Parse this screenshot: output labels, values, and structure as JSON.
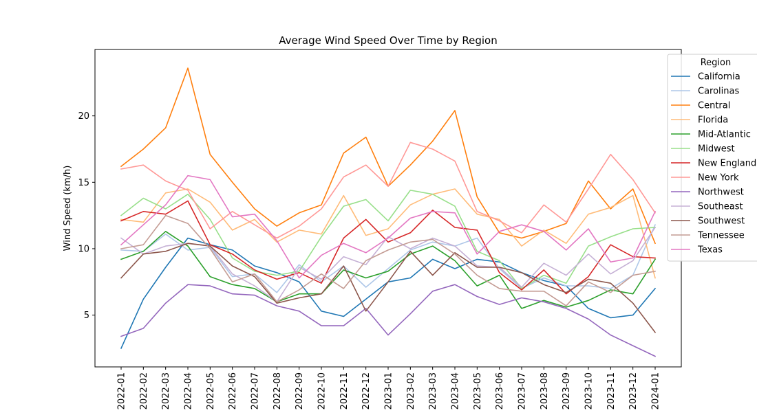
{
  "chart_data": {
    "type": "line",
    "title": "Average Wind Speed Over Time by Region",
    "xlabel": "",
    "ylabel": "Wind Speed (km/h)",
    "ylim": [
      1.1,
      25.0
    ],
    "yticks": [
      5,
      10,
      15,
      20
    ],
    "grid": false,
    "legend": {
      "title": "Region",
      "placement": "right"
    },
    "categories": [
      "2022-01",
      "2022-02",
      "2022-03",
      "2022-04",
      "2022-05",
      "2022-06",
      "2022-07",
      "2022-08",
      "2022-09",
      "2022-10",
      "2022-11",
      "2022-12",
      "2023-01",
      "2023-02",
      "2023-03",
      "2023-04",
      "2023-05",
      "2023-06",
      "2023-07",
      "2023-08",
      "2023-09",
      "2023-10",
      "2023-11",
      "2023-12",
      "2024-01"
    ],
    "series": [
      {
        "name": "California",
        "color": "#1f77b4",
        "values": [
          2.5,
          6.2,
          8.6,
          10.8,
          10.3,
          9.9,
          8.7,
          8.2,
          7.5,
          5.3,
          4.9,
          6.2,
          7.5,
          7.8,
          9.2,
          8.5,
          9.2,
          9.0,
          8.2,
          7.6,
          7.2,
          5.5,
          4.8,
          5.0,
          7.0
        ]
      },
      {
        "name": "Carolinas",
        "color": "#aec7e8",
        "values": [
          9.9,
          9.8,
          11.1,
          9.9,
          10.1,
          7.9,
          8.1,
          6.7,
          8.8,
          7.5,
          8.7,
          7.1,
          8.5,
          9.9,
          10.5,
          10.2,
          10.8,
          8.5,
          7.0,
          7.8,
          7.2,
          7.2,
          7.0,
          8.0,
          11.8
        ]
      },
      {
        "name": "Central",
        "color": "#ff7f0e",
        "values": [
          16.2,
          17.5,
          19.1,
          23.6,
          17.1,
          15.0,
          13.0,
          11.7,
          12.7,
          13.3,
          17.2,
          18.4,
          14.7,
          16.3,
          18.1,
          20.4,
          13.9,
          11.2,
          10.8,
          11.3,
          11.9,
          15.1,
          13.0,
          14.5,
          10.4
        ]
      },
      {
        "name": "Florida",
        "color": "#ffbb78",
        "values": [
          12.2,
          12.0,
          14.2,
          14.5,
          13.5,
          11.4,
          12.2,
          10.5,
          11.4,
          11.1,
          14.0,
          11.0,
          11.5,
          13.3,
          14.1,
          14.5,
          12.6,
          12.2,
          10.2,
          11.4,
          10.4,
          12.6,
          13.1,
          14.0,
          7.8
        ]
      },
      {
        "name": "Mid-Atlantic",
        "color": "#2ca02c",
        "values": [
          9.2,
          9.8,
          11.3,
          10.2,
          7.9,
          7.3,
          7.0,
          6.0,
          6.6,
          6.6,
          8.4,
          7.8,
          8.3,
          9.6,
          10.2,
          9.1,
          7.2,
          8.0,
          5.5,
          6.1,
          5.6,
          6.1,
          6.9,
          6.6,
          9.2
        ]
      },
      {
        "name": "Midwest",
        "color": "#98df8a",
        "values": [
          12.5,
          13.8,
          13.0,
          14.1,
          12.2,
          9.3,
          8.3,
          8.0,
          8.3,
          10.9,
          13.2,
          13.7,
          12.1,
          14.4,
          14.1,
          13.2,
          9.8,
          9.1,
          7.0,
          8.0,
          7.4,
          10.2,
          10.9,
          11.5,
          11.6
        ]
      },
      {
        "name": "New England",
        "color": "#d62728",
        "values": [
          12.1,
          12.8,
          12.6,
          13.6,
          10.3,
          9.6,
          8.4,
          7.7,
          8.2,
          7.4,
          10.8,
          12.2,
          10.5,
          11.2,
          12.9,
          11.6,
          11.4,
          8.2,
          6.9,
          8.4,
          6.6,
          7.9,
          10.3,
          9.4,
          9.3
        ]
      },
      {
        "name": "New York",
        "color": "#ff9896",
        "values": [
          16.0,
          16.3,
          15.1,
          14.4,
          11.5,
          12.8,
          11.8,
          10.8,
          11.7,
          13.0,
          15.4,
          16.3,
          14.7,
          18.0,
          17.5,
          16.6,
          12.8,
          12.1,
          11.2,
          13.3,
          12.0,
          14.5,
          17.1,
          15.2,
          12.7
        ]
      },
      {
        "name": "Northwest",
        "color": "#9467bd",
        "values": [
          3.4,
          4.0,
          5.9,
          7.3,
          7.2,
          6.6,
          6.5,
          5.7,
          5.3,
          4.2,
          4.2,
          5.5,
          3.5,
          5.1,
          6.8,
          7.3,
          6.4,
          5.8,
          6.3,
          6.0,
          5.5,
          4.7,
          3.5,
          2.7,
          1.9
        ]
      },
      {
        "name": "Southeast",
        "color": "#c5b0d5",
        "values": [
          10.8,
          9.6,
          10.2,
          10.4,
          10.2,
          8.1,
          7.2,
          6.0,
          8.6,
          7.7,
          9.4,
          8.8,
          10.9,
          10.0,
          10.8,
          10.2,
          8.7,
          8.6,
          7.1,
          8.9,
          8.0,
          9.6,
          8.1,
          9.1,
          11.6
        ]
      },
      {
        "name": "Southwest",
        "color": "#8c564b",
        "values": [
          7.8,
          9.6,
          9.8,
          10.4,
          10.2,
          8.7,
          7.9,
          5.9,
          6.3,
          6.6,
          8.7,
          5.3,
          7.5,
          9.8,
          8.0,
          9.7,
          8.6,
          8.6,
          8.2,
          7.3,
          6.7,
          7.7,
          7.4,
          5.9,
          3.7
        ]
      },
      {
        "name": "Tennessee",
        "color": "#c49c94",
        "values": [
          10.0,
          10.3,
          12.5,
          11.9,
          10.0,
          7.5,
          8.1,
          6.0,
          6.9,
          8.1,
          7.0,
          9.1,
          9.9,
          10.5,
          10.7,
          9.6,
          8.0,
          7.0,
          6.8,
          6.8,
          5.7,
          7.5,
          6.7,
          8.0,
          8.3
        ]
      },
      {
        "name": "Texas",
        "color": "#e377c2",
        "values": [
          10.3,
          11.8,
          13.3,
          15.5,
          15.2,
          12.4,
          12.6,
          10.6,
          7.8,
          9.5,
          10.4,
          9.7,
          10.8,
          12.3,
          12.8,
          12.7,
          9.6,
          11.3,
          11.8,
          11.3,
          9.9,
          11.5,
          9.0,
          9.3,
          12.8
        ]
      }
    ]
  }
}
